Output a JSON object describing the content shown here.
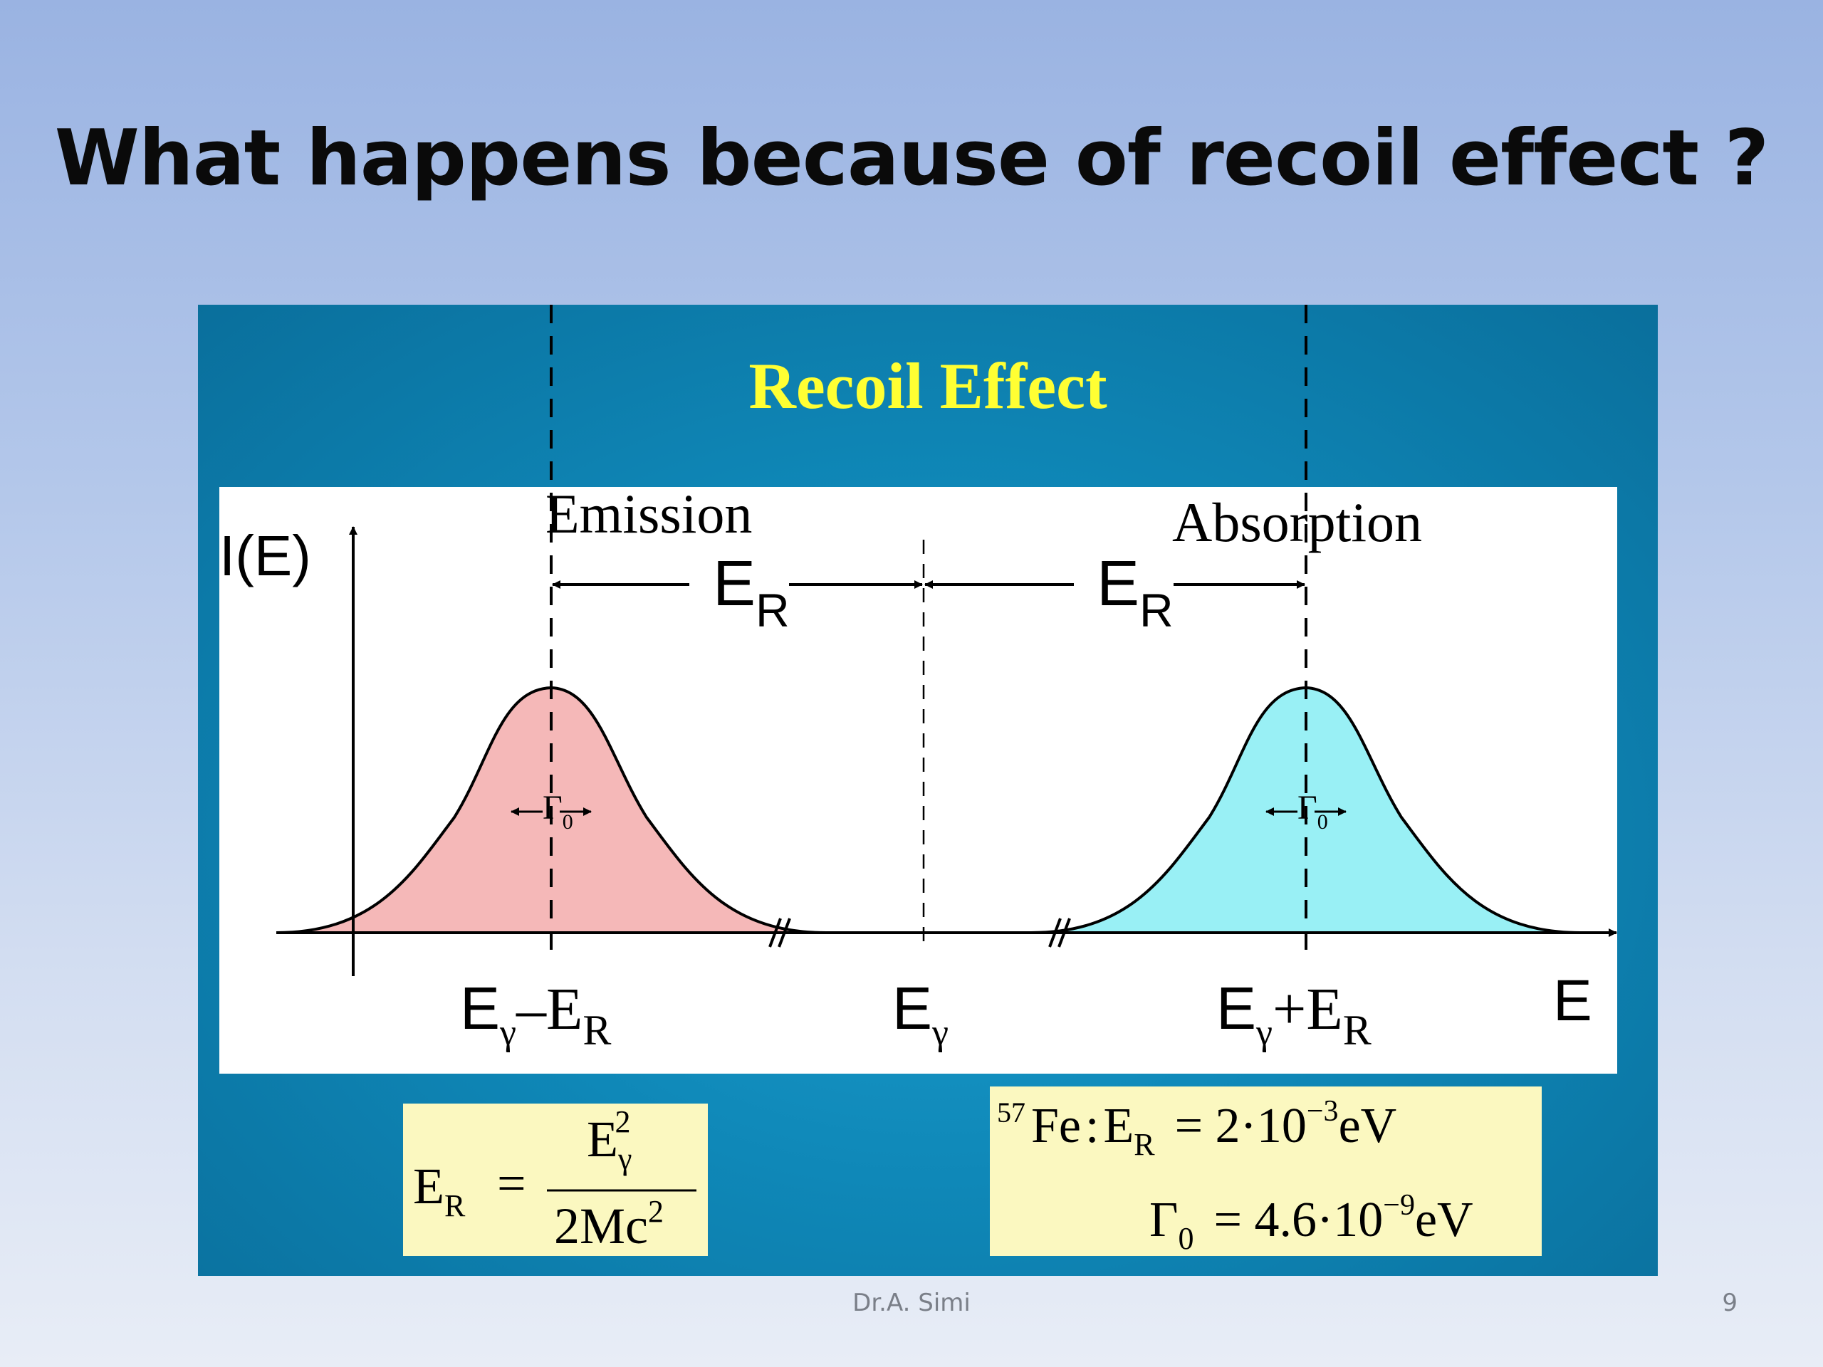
{
  "slide": {
    "title": "What happens because of recoil effect ?",
    "footer_author": "Dr.A. Simi",
    "page_number": "9"
  },
  "figure": {
    "heading": "Recoil Effect",
    "y_axis_label": "I(E)",
    "x_axis_label": "E",
    "emission_label": "Emission",
    "absorption_label": "Absorption",
    "shift_label_main": "E",
    "shift_label_sub": "R",
    "linewidth_main": "Γ",
    "linewidth_sub": "0",
    "tick_left": {
      "E": "E",
      "gamma": "γ",
      "op": "–E",
      "R": "R"
    },
    "tick_center": {
      "E": "E",
      "gamma": "γ"
    },
    "tick_right": {
      "E": "E",
      "gamma": "γ",
      "op": "+E",
      "R": "R"
    },
    "formula_left": {
      "lhs_main": "E",
      "lhs_sub": "R",
      "equals": "=",
      "num_main": "E",
      "num_sub": "γ",
      "num_sup": "2",
      "den_main": "2Mc",
      "den_sup": "2"
    },
    "formula_right": {
      "iso_sup": "57",
      "iso": "Fe",
      "colon": ":",
      "er_main": "E",
      "er_sub": "R",
      "eq1": "= 2·10",
      "exp1": "−3",
      "unit": "eV",
      "g_main": "Γ",
      "g_sub": "0",
      "eq2": "= 4.6·10",
      "exp2": "−9"
    },
    "colors": {
      "panel": "#0f88b8",
      "heading": "#ffff33",
      "emission_fill": "#f5b8b8",
      "absorption_fill": "#99f0f5",
      "formula_box": "#fbf8c0"
    }
  }
}
